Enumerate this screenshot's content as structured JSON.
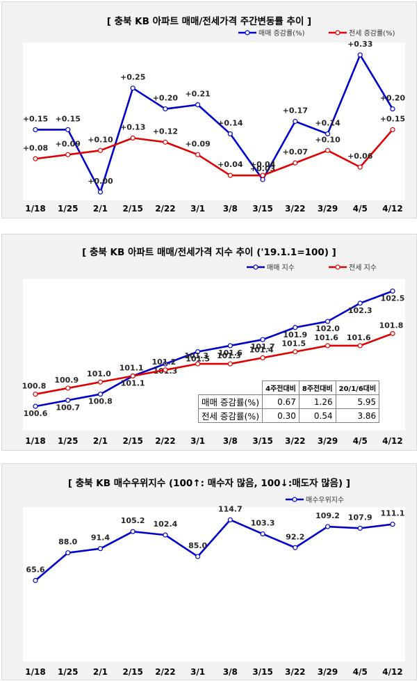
{
  "chart_data": [
    {
      "type": "line",
      "title": "[ 충북  KB 아파트 매매/전세가격 주간변동률 추이 ]",
      "categories": [
        "1/18",
        "1/25",
        "2/1",
        "2/15",
        "2/22",
        "3/1",
        "3/8",
        "3/15",
        "3/22",
        "3/29",
        "4/5",
        "4/12"
      ],
      "series": [
        {
          "name": "매매 증감률(%)",
          "color": "#0000cc",
          "values": [
            0.15,
            0.15,
            0.0,
            0.25,
            0.2,
            0.21,
            0.14,
            0.03,
            0.17,
            0.14,
            0.33,
            0.2
          ],
          "labels": [
            "+0.15",
            "+0.15",
            "+0.00",
            "+0.25",
            "+0.20",
            "+0.21",
            "+0.14",
            "+0.03",
            "+0.17",
            "+0.14",
            "+0.33",
            "+0.20"
          ]
        },
        {
          "name": "전세 증감률(%)",
          "color": "#e00000",
          "values": [
            0.08,
            0.09,
            0.1,
            0.13,
            0.12,
            0.09,
            0.04,
            0.04,
            0.07,
            0.1,
            0.06,
            0.15
          ],
          "labels": [
            "+0.08",
            "+0.09",
            "+0.10",
            "+0.13",
            "+0.12",
            "+0.09",
            "+0.04",
            "+0.04",
            "+0.07",
            "+0.10",
            "+0.06",
            "+0.15"
          ]
        }
      ],
      "ylim": [
        -0.02,
        0.36
      ]
    },
    {
      "type": "line",
      "title": "[ 충북  KB 아파트 매매/전세가격 지수 추이 ('19.1.1=100) ]",
      "categories": [
        "1/18",
        "1/25",
        "2/1",
        "2/15",
        "2/22",
        "3/1",
        "3/8",
        "3/15",
        "3/22",
        "3/29",
        "4/5",
        "4/12"
      ],
      "series": [
        {
          "name": "매매 지수",
          "color": "#0000cc",
          "values": [
            100.6,
            100.7,
            100.8,
            101.1,
            101.3,
            101.5,
            101.6,
            101.7,
            101.9,
            102.0,
            102.3,
            102.5
          ],
          "labels": [
            "100.6",
            "100.7",
            "100.8",
            "101.1",
            "101.3",
            "101.5",
            "101.6",
            "101.7",
            "101.9",
            "102.0",
            "102.3",
            "102.5"
          ]
        },
        {
          "name": "전세 지수",
          "color": "#e00000",
          "values": [
            100.8,
            100.9,
            101.0,
            101.1,
            101.2,
            101.3,
            101.3,
            101.4,
            101.5,
            101.6,
            101.6,
            101.8
          ],
          "labels": [
            "100.8",
            "100.9",
            "101.0",
            "101.1",
            "101.2",
            "101.3",
            "101.3",
            "101.4",
            "101.5",
            "101.6",
            "101.6",
            "101.8"
          ]
        }
      ],
      "ylim": [
        100.2,
        102.7
      ],
      "table": {
        "headers": [
          "4주전대비",
          "8주전대비",
          "20/1/6대비"
        ],
        "rows": [
          {
            "label": "매매 증감률(%)",
            "values": [
              "0.67",
              "1.26",
              "5.95"
            ]
          },
          {
            "label": "전세 증감률(%)",
            "values": [
              "0.30",
              "0.54",
              "3.86"
            ]
          }
        ]
      }
    },
    {
      "type": "line",
      "title": "[ 충북  KB 매수우위지수 (100↑: 매수자 많음, 100↓:매도자 많음) ]",
      "categories": [
        "1/18",
        "1/25",
        "2/1",
        "2/15",
        "2/22",
        "3/1",
        "3/8",
        "3/15",
        "3/22",
        "3/29",
        "4/5",
        "4/12"
      ],
      "series": [
        {
          "name": "매수우위지수",
          "color": "#0000cc",
          "values": [
            65.6,
            88.0,
            91.4,
            105.2,
            102.4,
            85.0,
            114.7,
            103.3,
            92.2,
            109.2,
            107.9,
            111.1
          ],
          "labels": [
            "65.6",
            "88.0",
            "91.4",
            "105.2",
            "102.4",
            "85.0",
            "114.7",
            "103.3",
            "92.2",
            "109.2",
            "107.9",
            "111.1"
          ]
        }
      ],
      "ylim": [
        0,
        125
      ]
    }
  ]
}
